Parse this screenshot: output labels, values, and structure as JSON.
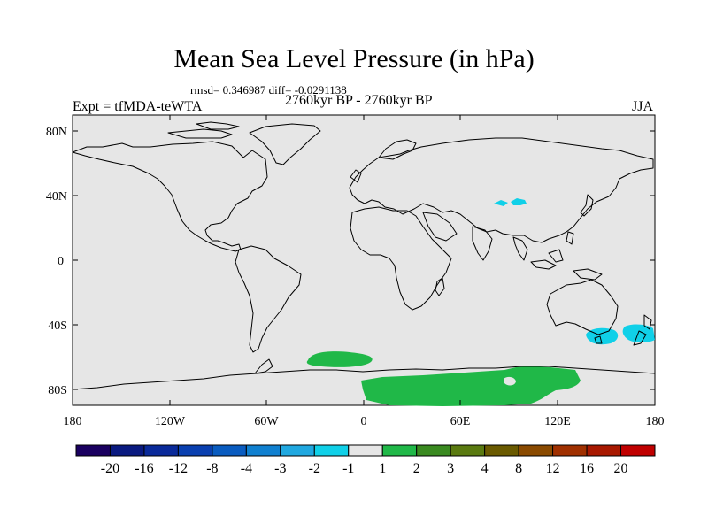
{
  "title": "Mean Sea Level Pressure (in hPa)",
  "stats": "rmsd= 0.346987 diff= -0.0291138",
  "period": "2760kyr BP - 2760kyr BP",
  "experiment": "Expt = tfMDA-teWTA",
  "season": "JJA",
  "map": {
    "lat_labels": [
      "80N",
      "40N",
      "0",
      "40S",
      "80S"
    ],
    "lon_labels": [
      "180",
      "120W",
      "60W",
      "0",
      "60E",
      "120E",
      "180"
    ],
    "background_color": "#e6e6e6",
    "coast_color": "#000000"
  },
  "colorbar": {
    "colors": [
      "#1a0060",
      "#0a1a80",
      "#0a2a9a",
      "#0a40b0",
      "#0a5cc0",
      "#1080d0",
      "#20a8e0",
      "#10d0e8",
      "#e6e6e6",
      "#20b848",
      "#3a8a20",
      "#5a7a10",
      "#6a5a00",
      "#8a4a00",
      "#a03000",
      "#a81800",
      "#c00000"
    ],
    "labels": [
      "-20",
      "-16",
      "-12",
      "-8",
      "-4",
      "-3",
      "-2",
      "-1",
      "1",
      "2",
      "3",
      "4",
      "8",
      "12",
      "16",
      "20"
    ]
  },
  "anomaly_regions": [
    {
      "name": "central-asia-low",
      "color": "#10d0e8"
    },
    {
      "name": "tasman-sea-low",
      "color": "#10d0e8"
    },
    {
      "name": "south-atlantic-high",
      "color": "#20b848"
    },
    {
      "name": "antarctic-high",
      "color": "#20b848"
    }
  ]
}
